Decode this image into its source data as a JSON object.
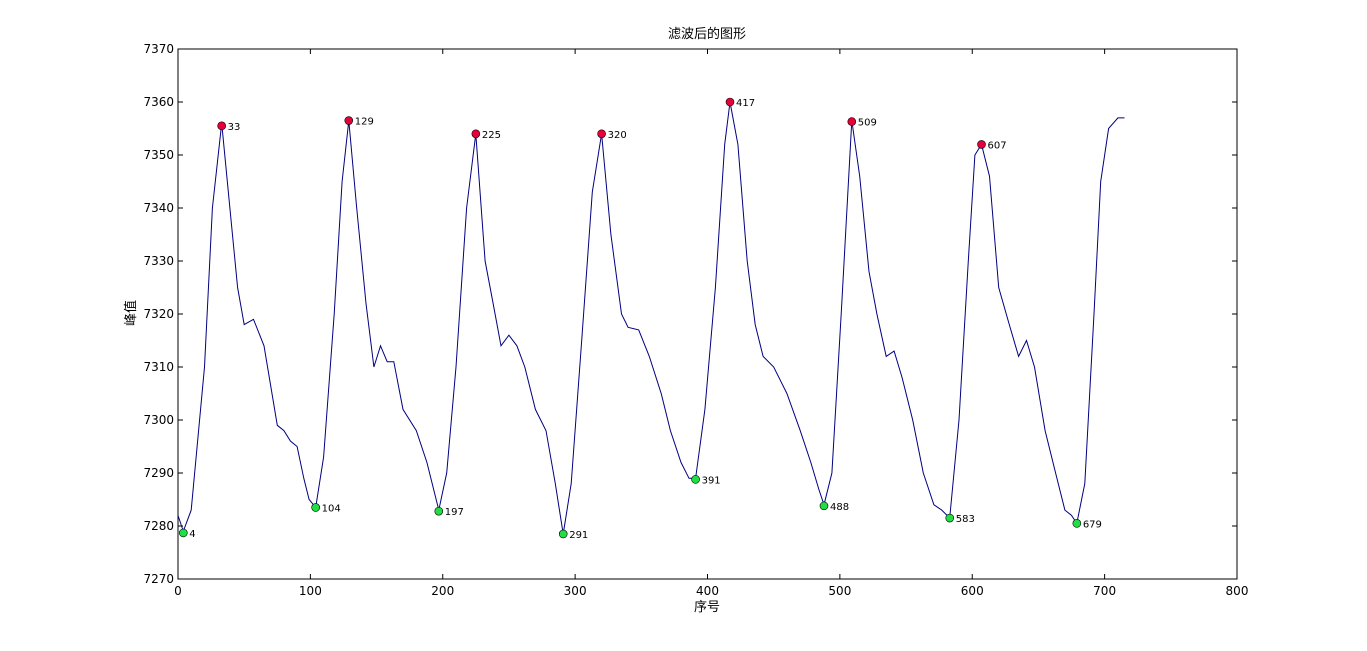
{
  "chart_data": {
    "type": "line",
    "title": "滤波后的图形",
    "xlabel": "序号",
    "ylabel": "峰值",
    "xlim": [
      0,
      800
    ],
    "ylim": [
      7270,
      7370
    ],
    "xticks": [
      0,
      100,
      200,
      300,
      400,
      500,
      600,
      700,
      800
    ],
    "yticks": [
      7270,
      7280,
      7290,
      7300,
      7310,
      7320,
      7330,
      7340,
      7350,
      7360,
      7370
    ],
    "grid": false,
    "colors": {
      "line": "#000080",
      "peak": "#e8003a",
      "trough": "#22dd44"
    },
    "line_series": {
      "x": [
        0,
        4,
        10,
        20,
        26,
        33,
        40,
        45,
        50,
        57,
        65,
        75,
        80,
        85,
        90,
        95,
        99,
        104,
        110,
        118,
        124,
        129,
        135,
        142,
        148,
        153,
        158,
        163,
        170,
        180,
        188,
        197,
        203,
        210,
        218,
        225,
        232,
        238,
        244,
        250,
        256,
        262,
        270,
        278,
        285,
        291,
        297,
        305,
        313,
        320,
        327,
        335,
        340,
        348,
        356,
        365,
        372,
        380,
        386,
        391,
        398,
        406,
        413,
        417,
        423,
        430,
        436,
        442,
        450,
        460,
        470,
        478,
        484,
        488,
        494,
        501,
        509,
        515,
        522,
        528,
        535,
        541,
        547,
        555,
        563,
        571,
        577,
        583,
        590,
        597,
        602,
        607,
        613,
        620,
        628,
        635,
        641,
        647,
        655,
        663,
        670,
        675,
        679,
        685,
        692,
        697,
        703,
        710,
        715
      ],
      "y": [
        7282,
        7279,
        7283,
        7310,
        7340,
        7356,
        7338,
        7325,
        7318,
        7319,
        7314,
        7299,
        7298,
        7296,
        7295,
        7289,
        7285,
        7283.5,
        7293,
        7320,
        7345,
        7356.5,
        7340,
        7322,
        7310,
        7314,
        7311,
        7311,
        7302,
        7298,
        7292,
        7283,
        7290,
        7310,
        7340,
        7354,
        7330,
        7322,
        7314,
        7316,
        7314,
        7310,
        7302,
        7298,
        7288,
        7278.5,
        7288,
        7315,
        7343,
        7354,
        7335,
        7320,
        7317.5,
        7317,
        7312,
        7305,
        7298,
        7292,
        7289,
        7289,
        7302,
        7325,
        7352,
        7360,
        7352,
        7330,
        7318,
        7312,
        7310,
        7305,
        7298,
        7292,
        7287,
        7284,
        7290,
        7320,
        7356.5,
        7346,
        7328,
        7320,
        7312,
        7313,
        7308,
        7300,
        7290,
        7284,
        7283,
        7281.5,
        7300,
        7330,
        7350,
        7352,
        7346,
        7325,
        7318,
        7312,
        7315,
        7310,
        7298,
        7290,
        7283,
        7282,
        7280.5,
        7288,
        7320,
        7345,
        7355,
        7357,
        7357
      ]
    },
    "peaks": {
      "x": [
        33,
        129,
        225,
        320,
        417,
        509,
        607
      ],
      "y": [
        7355.5,
        7356.5,
        7354,
        7354,
        7360,
        7356.3,
        7352
      ],
      "labels": [
        "33",
        "129",
        "225",
        "320",
        "417",
        "509",
        "607"
      ]
    },
    "troughs": {
      "x": [
        4,
        104,
        197,
        291,
        391,
        488,
        583,
        679
      ],
      "y": [
        7278.7,
        7283.5,
        7282.8,
        7278.5,
        7288.8,
        7283.8,
        7281.5,
        7280.5
      ],
      "labels": [
        "4",
        "104",
        "197",
        "291",
        "391",
        "488",
        "583",
        "679"
      ]
    }
  }
}
